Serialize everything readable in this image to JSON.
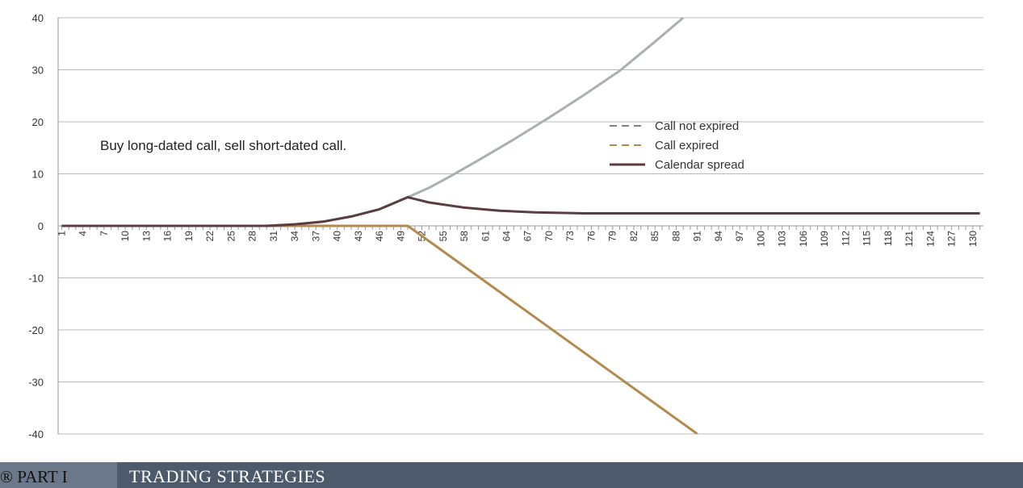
{
  "chart_data": {
    "type": "line",
    "title": "",
    "xlabel": "",
    "ylabel": "",
    "annotation": "Buy long-dated call, sell short-dated call.",
    "x_tick_labels": [
      "1",
      "4",
      "7",
      "10",
      "13",
      "16",
      "19",
      "22",
      "25",
      "28",
      "31",
      "34",
      "37",
      "40",
      "43",
      "46",
      "49",
      "52",
      "55",
      "58",
      "61",
      "64",
      "67",
      "70",
      "73",
      "76",
      "79",
      "82",
      "85",
      "88",
      "91",
      "94",
      "97",
      "100",
      "103",
      "106",
      "109",
      "112",
      "115",
      "118",
      "121",
      "124",
      "127",
      "130"
    ],
    "x_range": [
      1,
      131
    ],
    "ylim": [
      -40,
      40
    ],
    "y_ticks": [
      40,
      30,
      20,
      10,
      0,
      -10,
      -20,
      -30,
      -40
    ],
    "grid": "horizontal",
    "legend_position": "center-right",
    "series": [
      {
        "name": "Call not expired",
        "color": "#a9b0ae",
        "style": "dashed",
        "points": [
          [
            1,
            0
          ],
          [
            30,
            0
          ],
          [
            34,
            0.3
          ],
          [
            38,
            0.8
          ],
          [
            42,
            1.8
          ],
          [
            46,
            3.2
          ],
          [
            50,
            5.5
          ],
          [
            53,
            7.3
          ],
          [
            56,
            9.5
          ],
          [
            60,
            12.6
          ],
          [
            65,
            16.6
          ],
          [
            70,
            20.8
          ],
          [
            75,
            25.2
          ],
          [
            80,
            29.8
          ],
          [
            85,
            35.4
          ],
          [
            89,
            40
          ]
        ]
      },
      {
        "name": "Call expired",
        "color": "#b38a4e",
        "style": "dashed",
        "points": [
          [
            1,
            0
          ],
          [
            50,
            0
          ],
          [
            91,
            -40
          ]
        ]
      },
      {
        "name": "Calendar spread",
        "color": "#5a3d42",
        "style": "solid",
        "points": [
          [
            1,
            0
          ],
          [
            30,
            0
          ],
          [
            34,
            0.3
          ],
          [
            38,
            0.8
          ],
          [
            42,
            1.8
          ],
          [
            46,
            3.2
          ],
          [
            50,
            5.5
          ],
          [
            53,
            4.5
          ],
          [
            58,
            3.5
          ],
          [
            63,
            2.9
          ],
          [
            68,
            2.6
          ],
          [
            75,
            2.4
          ],
          [
            131,
            2.4
          ]
        ]
      }
    ]
  },
  "footer": {
    "part_label": "® PART I",
    "section_title": "TRADING STRATEGIES"
  }
}
